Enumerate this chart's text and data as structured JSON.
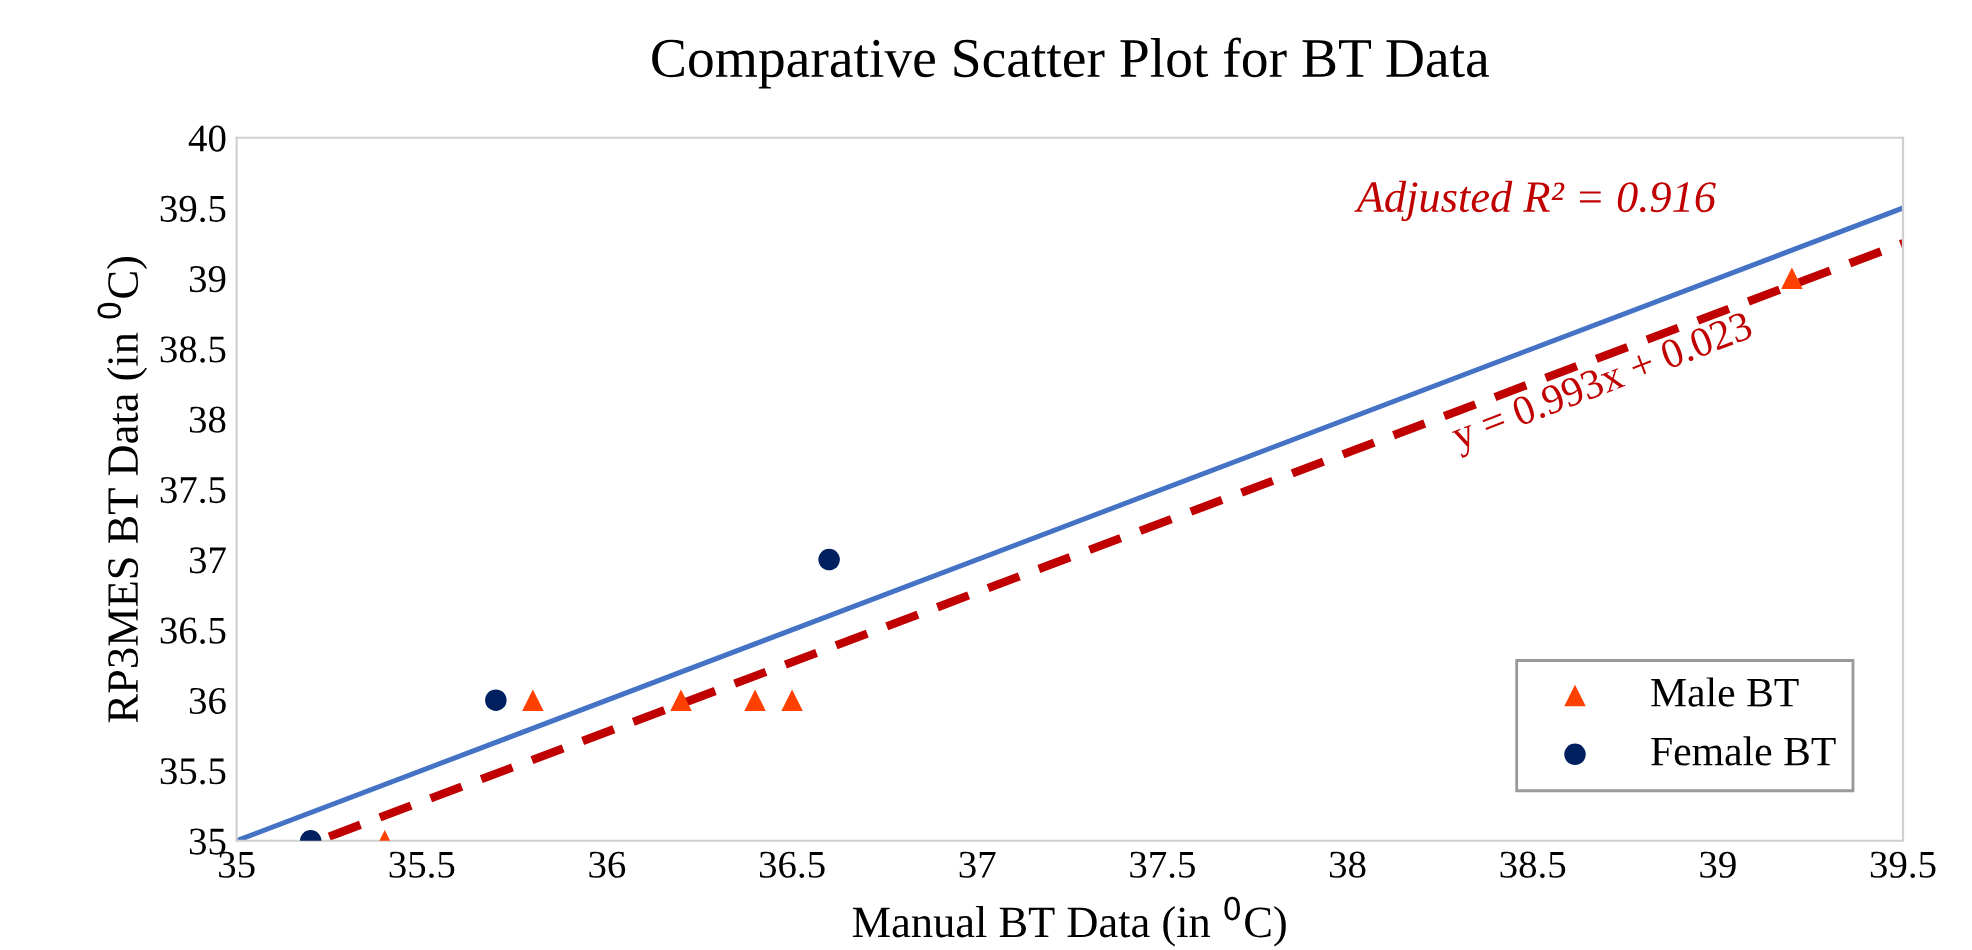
{
  "chart_data": {
    "type": "scatter",
    "title": "Comparative Scatter Plot for BT Data",
    "xlabel": "Manual BT Data (in $^{0}$C)",
    "ylabel": "RP3MES BT Data (in $^{0}$C)",
    "xlim": [
      35,
      39.5
    ],
    "xticks": [
      35,
      35.5,
      36,
      36.5,
      37,
      37.5,
      38,
      38.5,
      39,
      39.5
    ],
    "ylim": [
      35,
      40
    ],
    "yticks": [
      35,
      35.5,
      36,
      36.5,
      37,
      37.5,
      38,
      38.5,
      39,
      39.5,
      40
    ],
    "grid": false,
    "legend": "bottom right",
    "annotations": [
      "Adjusted R² = 0.916",
      "y = 0.993x + 0.023"
    ],
    "series": [
      {
        "name": "Male BT",
        "color": "#ff4000",
        "marker": "triangle",
        "x": [
          35.4,
          35.8,
          36.2,
          36.4,
          36.5,
          39.2
        ],
        "values": [
          35,
          36,
          36,
          36,
          36,
          39
        ]
      },
      {
        "name": "Female BT",
        "color": "#002060",
        "marker": "circle",
        "x": [
          35.2,
          35.7,
          36.6
        ],
        "values": [
          35,
          36,
          37
        ]
      },
      {
        "type": "line",
        "color": "#4472c4",
        "line_style": "solid",
        "x": [
          35,
          39.5
        ],
        "values": [
          35,
          39.5
        ]
      },
      {
        "type": "line",
        "color": "#c00000",
        "line_style": "dashed",
        "x": [
          35.25,
          39.5
        ],
        "values": [
          35.03,
          39.25
        ]
      }
    ]
  }
}
